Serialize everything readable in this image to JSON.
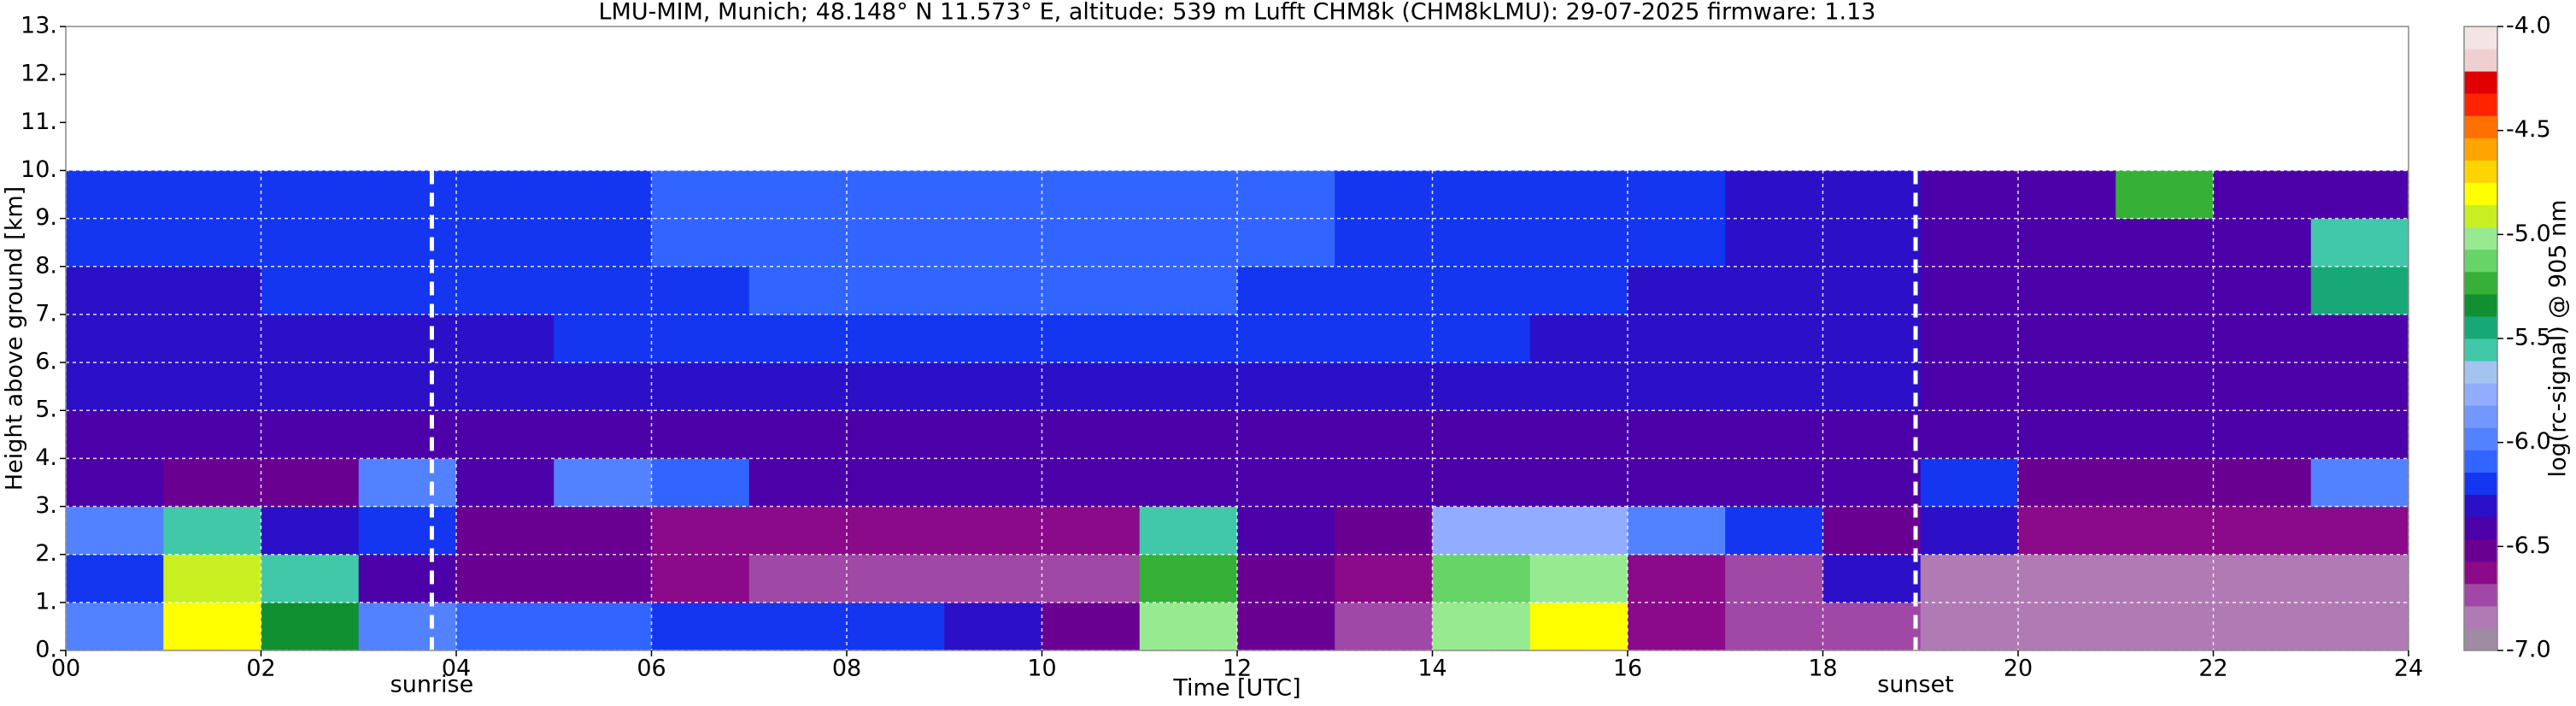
{
  "chart_data": {
    "type": "heatmap",
    "title": "LMU-MIM, Munich; 48.148° N 11.573° E, altitude: 539 m    Lufft CHM8k (CHM8kLMU): 29-07-2025    firmware: 1.13",
    "xlabel": "Time [UTC]",
    "ylabel": "Height above ground [km]",
    "colorbar_label": "log(rc-signal) @ 905 nm",
    "xlim": [
      0,
      24
    ],
    "ylim": [
      0,
      13
    ],
    "xticks": [
      {
        "value": 0,
        "label": "00"
      },
      {
        "value": 2,
        "label": "02"
      },
      {
        "value": 4,
        "label": "04"
      },
      {
        "value": 6,
        "label": "06"
      },
      {
        "value": 8,
        "label": "08"
      },
      10,
      12,
      14,
      16,
      18,
      20,
      22,
      24
    ],
    "yticks": [
      {
        "value": 0,
        "label": "0."
      },
      {
        "value": 1,
        "label": "1."
      },
      {
        "value": 2,
        "label": "2."
      },
      {
        "value": 3,
        "label": "3."
      },
      {
        "value": 4,
        "label": "4."
      },
      {
        "value": 5,
        "label": "5."
      },
      {
        "value": 6,
        "label": "6."
      },
      {
        "value": 7,
        "label": "7."
      },
      {
        "value": 8,
        "label": "8."
      },
      {
        "value": 9,
        "label": "9."
      },
      {
        "value": 10,
        "label": "10."
      },
      {
        "value": 11,
        "label": "11."
      },
      {
        "value": 12,
        "label": "12."
      },
      {
        "value": 13,
        "label": "13."
      }
    ],
    "clim": [
      -7,
      -4
    ],
    "cticks": [
      {
        "value": -4,
        "label": "-4.0"
      },
      {
        "value": -4.5,
        "label": "-4.5"
      },
      {
        "value": -5,
        "label": "-5.0"
      },
      {
        "value": -5.5,
        "label": "-5.5"
      },
      {
        "value": -6,
        "label": "-6.0"
      },
      {
        "value": -6.5,
        "label": "-6.5"
      },
      {
        "value": -7,
        "label": "-7.0"
      }
    ],
    "colorscale": [
      "#a08ca2",
      "#b07ab4",
      "#a048a6",
      "#8a0a8a",
      "#6a0092",
      "#4c00a8",
      "#2c10c8",
      "#1436f0",
      "#3264ff",
      "#5282ff",
      "#7298ff",
      "#92acff",
      "#a4c4f0",
      "#40c8a8",
      "#18a878",
      "#109030",
      "#36b036",
      "#66d466",
      "#98ea90",
      "#c8f020",
      "#ffff00",
      "#ffd400",
      "#ffa400",
      "#ff7000",
      "#ff2400",
      "#e00000",
      "#eed0d0",
      "#f4e4e4"
    ],
    "grid": true,
    "x_edges": [
      0,
      1,
      2,
      3,
      4,
      5,
      6,
      7,
      8,
      9,
      10,
      11,
      12,
      13,
      14,
      15,
      16,
      17,
      18,
      19,
      20,
      21,
      22,
      23,
      24
    ],
    "y_edges": [
      0,
      1,
      2,
      3,
      4,
      5,
      6,
      7,
      8,
      9,
      10
    ],
    "z": [
      [
        -6.0,
        -4.8,
        -5.3,
        -6.0,
        -6.1,
        -6.1,
        -6.2,
        -6.2,
        -6.2,
        -6.3,
        -6.5,
        -5.0,
        -6.5,
        -6.7,
        -5.0,
        -4.8,
        -6.6,
        -6.7,
        -6.7,
        -6.8,
        -6.8,
        -6.8,
        -6.8,
        -6.8
      ],
      [
        -6.2,
        -4.9,
        -5.6,
        -6.4,
        -6.5,
        -6.5,
        -6.6,
        -6.7,
        -6.7,
        -6.7,
        -6.7,
        -5.2,
        -6.5,
        -6.6,
        -5.1,
        -5.0,
        -6.6,
        -6.7,
        -6.3,
        -6.8,
        -6.8,
        -6.8,
        -6.8,
        -6.8
      ],
      [
        -6.0,
        -5.6,
        -6.3,
        -6.2,
        -6.5,
        -6.5,
        -6.6,
        -6.6,
        -6.6,
        -6.6,
        -6.6,
        -5.6,
        -6.4,
        -6.5,
        -5.8,
        -5.8,
        -6.0,
        -6.2,
        -6.5,
        -6.3,
        -6.6,
        -6.6,
        -6.6,
        -6.6
      ],
      [
        -6.4,
        -6.5,
        -6.5,
        -6.0,
        -6.4,
        -6.0,
        -6.1,
        -6.4,
        -6.4,
        -6.4,
        -6.4,
        -6.4,
        -6.4,
        -6.4,
        -6.4,
        -6.4,
        -6.4,
        -6.4,
        -6.4,
        -6.2,
        -6.5,
        -6.5,
        -6.5,
        -6.0
      ],
      [
        -6.4,
        -6.4,
        -6.4,
        -6.4,
        -6.4,
        -6.4,
        -6.4,
        -6.4,
        -6.4,
        -6.4,
        -6.4,
        -6.4,
        -6.4,
        -6.4,
        -6.4,
        -6.4,
        -6.4,
        -6.4,
        -6.4,
        -6.4,
        -6.4,
        -6.4,
        -6.4,
        -6.4
      ],
      [
        -6.3,
        -6.3,
        -6.3,
        -6.3,
        -6.3,
        -6.3,
        -6.3,
        -6.3,
        -6.3,
        -6.3,
        -6.3,
        -6.3,
        -6.3,
        -6.3,
        -6.3,
        -6.3,
        -6.3,
        -6.3,
        -6.3,
        -6.4,
        -6.4,
        -6.4,
        -6.4,
        -6.4
      ],
      [
        -6.3,
        -6.3,
        -6.3,
        -6.3,
        -6.3,
        -6.2,
        -6.2,
        -6.2,
        -6.2,
        -6.2,
        -6.2,
        -6.2,
        -6.2,
        -6.2,
        -6.2,
        -6.3,
        -6.3,
        -6.3,
        -6.3,
        -6.4,
        -6.4,
        -6.4,
        -6.4,
        -6.4
      ],
      [
        -6.3,
        -6.3,
        -6.2,
        -6.2,
        -6.2,
        -6.2,
        -6.2,
        -6.1,
        -6.1,
        -6.1,
        -6.1,
        -6.1,
        -6.2,
        -6.2,
        -6.2,
        -6.2,
        -6.3,
        -6.3,
        -6.3,
        -6.4,
        -6.4,
        -6.4,
        -6.4,
        -5.4
      ],
      [
        -6.2,
        -6.2,
        -6.2,
        -6.2,
        -6.2,
        -6.2,
        -6.1,
        -6.1,
        -6.1,
        -6.1,
        -6.1,
        -6.1,
        -6.1,
        -6.2,
        -6.2,
        -6.2,
        -6.2,
        -6.3,
        -6.3,
        -6.4,
        -6.4,
        -6.4,
        -6.4,
        -5.6
      ],
      [
        -6.2,
        -6.2,
        -6.2,
        -6.2,
        -6.2,
        -6.2,
        -6.1,
        -6.1,
        -6.1,
        -6.1,
        -6.1,
        -6.1,
        -6.1,
        -6.2,
        -6.2,
        -6.2,
        -6.2,
        -6.3,
        -6.3,
        -6.4,
        -6.4,
        -5.2,
        -6.4,
        -6.4
      ]
    ],
    "events": [
      {
        "label": "sunrise",
        "x": 3.75
      },
      {
        "label": "sunset",
        "x": 18.95
      }
    ]
  }
}
